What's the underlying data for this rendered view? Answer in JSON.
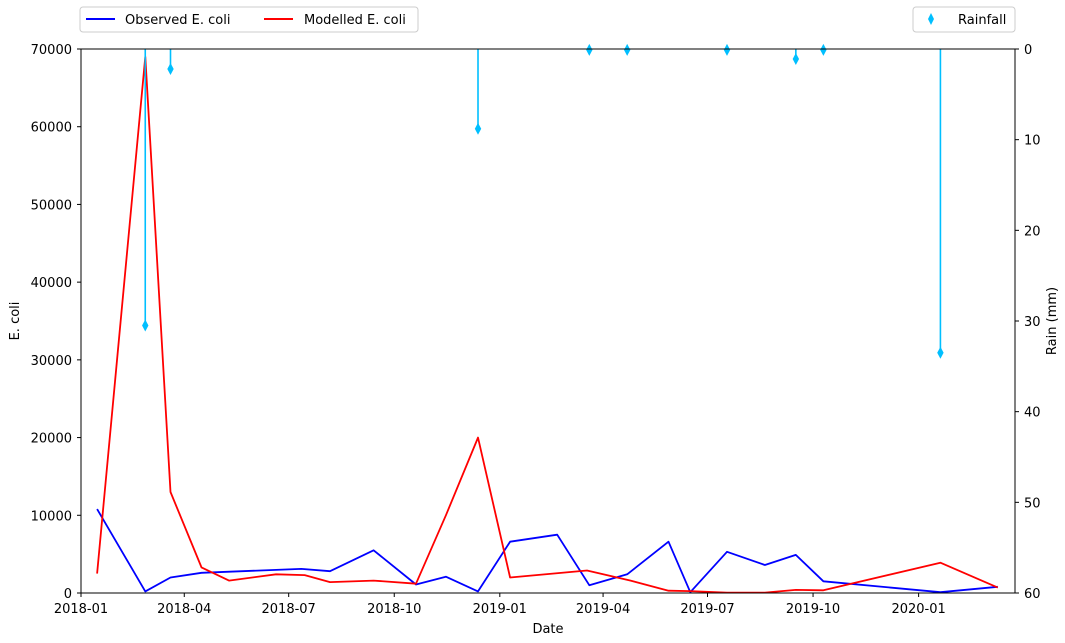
{
  "chart_data": {
    "type": "line",
    "title": "",
    "xlabel": "Date",
    "ylabel": "E. coli",
    "y2label": "Rain (mm)",
    "x_range": [
      "2018-01-01",
      "2020-03-25"
    ],
    "ylim": [
      0,
      70000
    ],
    "y2lim": [
      60,
      0
    ],
    "y2_inverted": true,
    "grid": false,
    "x_ticks": [
      "2018-01",
      "2018-04",
      "2018-07",
      "2018-10",
      "2019-01",
      "2019-04",
      "2019-07",
      "2019-10",
      "2020-01"
    ],
    "y_ticks": [
      0,
      10000,
      20000,
      30000,
      40000,
      50000,
      60000,
      70000
    ],
    "y2_ticks": [
      0,
      10,
      20,
      30,
      40,
      50,
      60
    ],
    "legend_left": {
      "placement": "above-top-left"
    },
    "legend_right": {
      "placement": "above-top-right"
    },
    "series": [
      {
        "name": "Observed E. coli",
        "color": "#0000ff",
        "axis": "left",
        "points": [
          [
            "2018-01-15",
            10800
          ],
          [
            "2018-02-26",
            200
          ],
          [
            "2018-03-20",
            2000
          ],
          [
            "2018-04-16",
            2600
          ],
          [
            "2018-07-12",
            3100
          ],
          [
            "2018-08-06",
            2800
          ],
          [
            "2018-09-13",
            5500
          ],
          [
            "2018-10-20",
            1100
          ],
          [
            "2018-11-15",
            2100
          ],
          [
            "2018-12-13",
            200
          ],
          [
            "2019-01-10",
            6600
          ],
          [
            "2019-02-20",
            7500
          ],
          [
            "2019-03-20",
            1000
          ],
          [
            "2019-04-22",
            2400
          ],
          [
            "2019-05-28",
            6600
          ],
          [
            "2019-06-16",
            100
          ],
          [
            "2019-07-18",
            5300
          ],
          [
            "2019-08-20",
            3600
          ],
          [
            "2019-09-16",
            4900
          ],
          [
            "2019-10-10",
            1500
          ],
          [
            "2020-01-20",
            100
          ],
          [
            "2020-03-10",
            800
          ]
        ]
      },
      {
        "name": "Modelled E. coli",
        "color": "#ff0000",
        "axis": "left",
        "points": [
          [
            "2018-01-15",
            2500
          ],
          [
            "2018-02-26",
            69000
          ],
          [
            "2018-03-20",
            13000
          ],
          [
            "2018-04-16",
            3300
          ],
          [
            "2018-05-10",
            1600
          ],
          [
            "2018-06-20",
            2400
          ],
          [
            "2018-07-15",
            2300
          ],
          [
            "2018-08-06",
            1400
          ],
          [
            "2018-09-13",
            1600
          ],
          [
            "2018-10-20",
            1200
          ],
          [
            "2018-11-15",
            10000
          ],
          [
            "2018-12-13",
            20000
          ],
          [
            "2019-01-10",
            2000
          ],
          [
            "2019-03-18",
            2900
          ],
          [
            "2019-04-25",
            1600
          ],
          [
            "2019-05-28",
            300
          ],
          [
            "2019-06-16",
            250
          ],
          [
            "2019-07-18",
            50
          ],
          [
            "2019-08-20",
            50
          ],
          [
            "2019-09-16",
            400
          ],
          [
            "2019-10-10",
            350
          ],
          [
            "2020-01-20",
            3900
          ],
          [
            "2020-03-10",
            700
          ]
        ]
      },
      {
        "name": "Rainfall",
        "color": "#00bfff",
        "axis": "right",
        "style": "stem-diamond",
        "points": [
          [
            "2018-02-26",
            30.5
          ],
          [
            "2018-03-20",
            2.2
          ],
          [
            "2018-12-13",
            8.8
          ],
          [
            "2019-03-20",
            0.1
          ],
          [
            "2019-04-22",
            0.1
          ],
          [
            "2019-07-18",
            0.1
          ],
          [
            "2019-09-16",
            1.1
          ],
          [
            "2019-10-10",
            0.1
          ],
          [
            "2020-01-20",
            33.5
          ]
        ]
      }
    ]
  }
}
